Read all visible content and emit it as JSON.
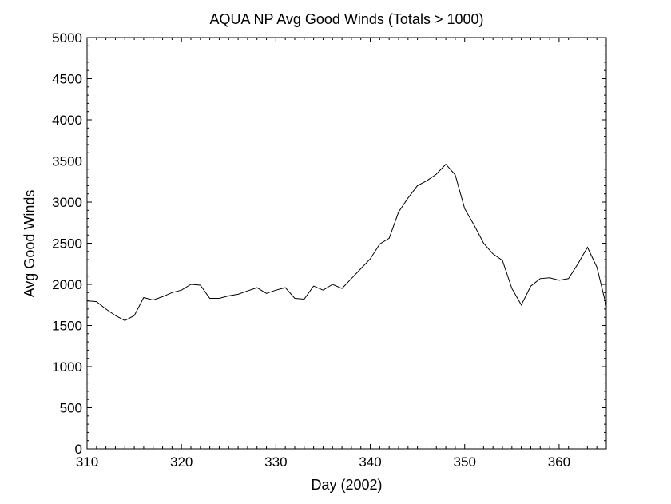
{
  "chart_data": {
    "type": "line",
    "title": "AQUA NP Avg Good Winds (Totals > 1000)",
    "xlabel": "Day (2002)",
    "ylabel": "Avg Good Winds",
    "xlim": [
      310,
      365
    ],
    "ylim": [
      0,
      5000
    ],
    "xticks": [
      310,
      320,
      330,
      340,
      350,
      360
    ],
    "yticks": [
      0,
      500,
      1000,
      1500,
      2000,
      2500,
      3000,
      3500,
      4000,
      4500,
      5000
    ],
    "grid": false,
    "line_color": "#000000",
    "series": [
      {
        "x": [
          310,
          311,
          312,
          313,
          314,
          315,
          316,
          317,
          318,
          319,
          320,
          321,
          322,
          323,
          324,
          325,
          326,
          327,
          328,
          329,
          330,
          331,
          332,
          333,
          334,
          335,
          336,
          337,
          338,
          339,
          340,
          341,
          342,
          343,
          344,
          345,
          346,
          347,
          348,
          349,
          350,
          351,
          352,
          353,
          354,
          355,
          356,
          357,
          358,
          359,
          360,
          361,
          362,
          363,
          364,
          365
        ],
        "y": [
          1800,
          1790,
          1700,
          1620,
          1560,
          1620,
          1840,
          1810,
          1850,
          1900,
          1930,
          2000,
          1990,
          1830,
          1830,
          1860,
          1880,
          1920,
          1960,
          1890,
          1930,
          1960,
          1830,
          1820,
          1980,
          1930,
          2000,
          1950,
          2070,
          2190,
          2310,
          2490,
          2560,
          2880,
          3050,
          3200,
          3260,
          3340,
          3460,
          3330,
          2920,
          2720,
          2500,
          2370,
          2290,
          1950,
          1750,
          1980,
          2070,
          2080,
          2050,
          2070,
          2250,
          2450,
          2210,
          1740
        ]
      }
    ]
  }
}
